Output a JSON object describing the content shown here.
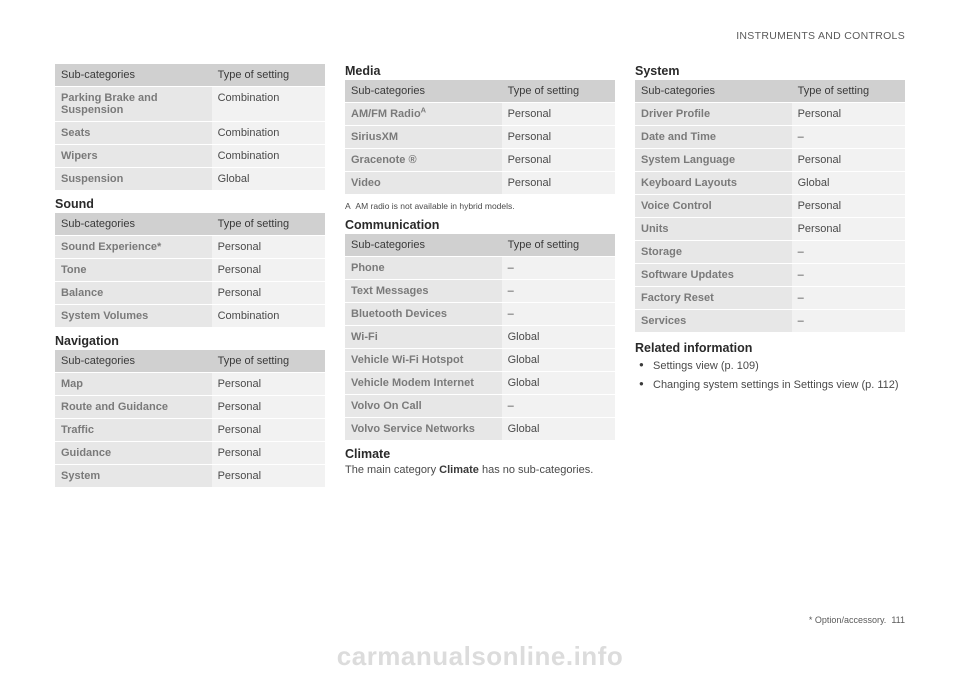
{
  "chapter_header": "INSTRUMENTS AND CONTROLS",
  "col_headers": {
    "sub": "Sub-categories",
    "type": "Type of setting"
  },
  "tables": {
    "top_col1": [
      {
        "sub": "Parking Brake and Suspension",
        "type": "Combination"
      },
      {
        "sub": "Seats",
        "type": "Combination"
      },
      {
        "sub": "Wipers",
        "type": "Combination"
      },
      {
        "sub": "Suspension",
        "type": "Global"
      }
    ],
    "sound": {
      "heading": "Sound",
      "rows": [
        {
          "sub": "Sound Experience*",
          "type": "Personal"
        },
        {
          "sub": "Tone",
          "type": "Personal"
        },
        {
          "sub": "Balance",
          "type": "Personal"
        },
        {
          "sub": "System Volumes",
          "type": "Combination"
        }
      ]
    },
    "navigation": {
      "heading": "Navigation",
      "rows": [
        {
          "sub": "Map",
          "type": "Personal"
        },
        {
          "sub": "Route and Guidance",
          "type": "Personal"
        },
        {
          "sub": "Traffic",
          "type": "Personal"
        },
        {
          "sub": "Guidance",
          "type": "Personal"
        },
        {
          "sub": "System",
          "type": "Personal"
        }
      ]
    },
    "media": {
      "heading": "Media",
      "rows": [
        {
          "sub": "AM/FM Radio",
          "sup": "A",
          "type": "Personal"
        },
        {
          "sub": "SiriusXM",
          "type": "Personal"
        },
        {
          "sub": "Gracenote ®",
          "type": "Personal"
        },
        {
          "sub": "Video",
          "type": "Personal"
        }
      ],
      "footnote_label": "A",
      "footnote_text": "AM radio is not available in hybrid models."
    },
    "communication": {
      "heading": "Communication",
      "rows": [
        {
          "sub": "Phone",
          "type": "–"
        },
        {
          "sub": "Text Messages",
          "type": "–"
        },
        {
          "sub": "Bluetooth Devices",
          "type": "–"
        },
        {
          "sub": "Wi-Fi",
          "type": "Global"
        },
        {
          "sub": "Vehicle Wi-Fi Hotspot",
          "type": "Global"
        },
        {
          "sub": "Vehicle Modem Internet",
          "type": "Global"
        },
        {
          "sub": "Volvo On Call",
          "type": "–"
        },
        {
          "sub": "Volvo Service Networks",
          "type": "Global"
        }
      ]
    },
    "climate": {
      "heading": "Climate",
      "body_prefix": "The main category ",
      "body_bold": "Climate",
      "body_suffix": " has no sub-categories."
    },
    "system": {
      "heading": "System",
      "rows": [
        {
          "sub": "Driver Profile",
          "type": "Personal"
        },
        {
          "sub": "Date and Time",
          "type": "–"
        },
        {
          "sub": "System Language",
          "type": "Personal"
        },
        {
          "sub": "Keyboard Layouts",
          "type": "Global"
        },
        {
          "sub": "Voice Control",
          "type": "Personal"
        },
        {
          "sub": "Units",
          "type": "Personal"
        },
        {
          "sub": "Storage",
          "type": "–"
        },
        {
          "sub": "Software Updates",
          "type": "–"
        },
        {
          "sub": "Factory Reset",
          "type": "–"
        },
        {
          "sub": "Services",
          "type": "–"
        }
      ]
    }
  },
  "related": {
    "heading": "Related information",
    "items": [
      "Settings view (p. 109)",
      "Changing system settings in Settings view (p. 112)"
    ]
  },
  "footer": {
    "note": "* Option/accessory.",
    "page": "111"
  },
  "watermark": "carmanualsonline.info"
}
